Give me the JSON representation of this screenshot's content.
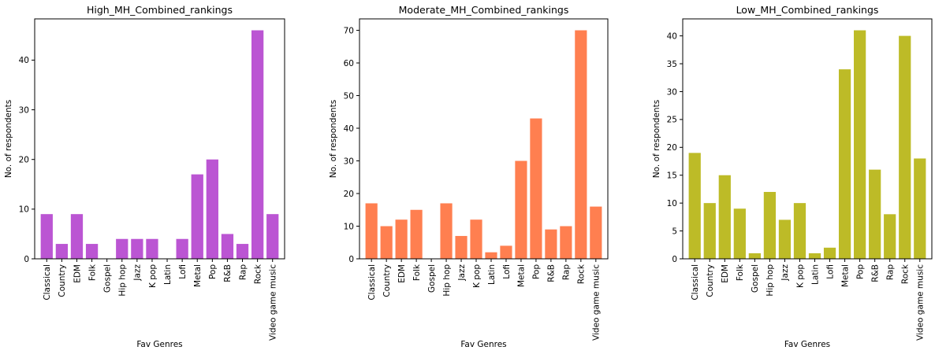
{
  "chart_data": [
    {
      "type": "bar",
      "title": "High_MH_Combined_rankings",
      "xlabel": "Fav Genres",
      "ylabel": "No. of respondents",
      "categories": [
        "Classical",
        "Country",
        "EDM",
        "Folk",
        "Gospel",
        "Hip hop",
        "Jazz",
        "K pop",
        "Latin",
        "Lofi",
        "Metal",
        "Pop",
        "R&B",
        "Rap",
        "Rock",
        "Video game music"
      ],
      "values": [
        9,
        3,
        9,
        3,
        0,
        4,
        4,
        4,
        0,
        4,
        17,
        20,
        5,
        3,
        46,
        9
      ],
      "ylim": [
        0,
        48.3
      ],
      "yticks": [
        0,
        10,
        20,
        30,
        40
      ],
      "color": "#bb55d3",
      "grid": false,
      "legend": "none"
    },
    {
      "type": "bar",
      "title": "Moderate_MH_Combined_rankings",
      "xlabel": "Fav Genres",
      "ylabel": "No. of respondents",
      "categories": [
        "Classical",
        "Country",
        "EDM",
        "Folk",
        "Gospel",
        "Hip hop",
        "Jazz",
        "K pop",
        "Latin",
        "Lofi",
        "Metal",
        "Pop",
        "R&B",
        "Rap",
        "Rock",
        "Video game music"
      ],
      "values": [
        17,
        10,
        12,
        15,
        0,
        17,
        7,
        12,
        2,
        4,
        30,
        43,
        9,
        10,
        70,
        16
      ],
      "ylim": [
        0,
        73.5
      ],
      "yticks": [
        0,
        10,
        20,
        30,
        40,
        50,
        60,
        70
      ],
      "color": "#ff7f50",
      "grid": false,
      "legend": "none"
    },
    {
      "type": "bar",
      "title": "Low_MH_Combined_rankings",
      "xlabel": "Fav Genres",
      "ylabel": "No. of respondents",
      "categories": [
        "Classical",
        "Country",
        "EDM",
        "Folk",
        "Gospel",
        "Hip hop",
        "Jazz",
        "K pop",
        "Latin",
        "Lofi",
        "Metal",
        "Pop",
        "R&B",
        "Rap",
        "Rock",
        "Video game music"
      ],
      "values": [
        19,
        10,
        15,
        9,
        1,
        12,
        7,
        10,
        1,
        2,
        34,
        41,
        16,
        8,
        40,
        18
      ],
      "ylim": [
        0,
        43.05
      ],
      "yticks": [
        0,
        5,
        10,
        15,
        20,
        25,
        30,
        35,
        40
      ],
      "color": "#bdbb27",
      "grid": false,
      "legend": "none"
    }
  ]
}
